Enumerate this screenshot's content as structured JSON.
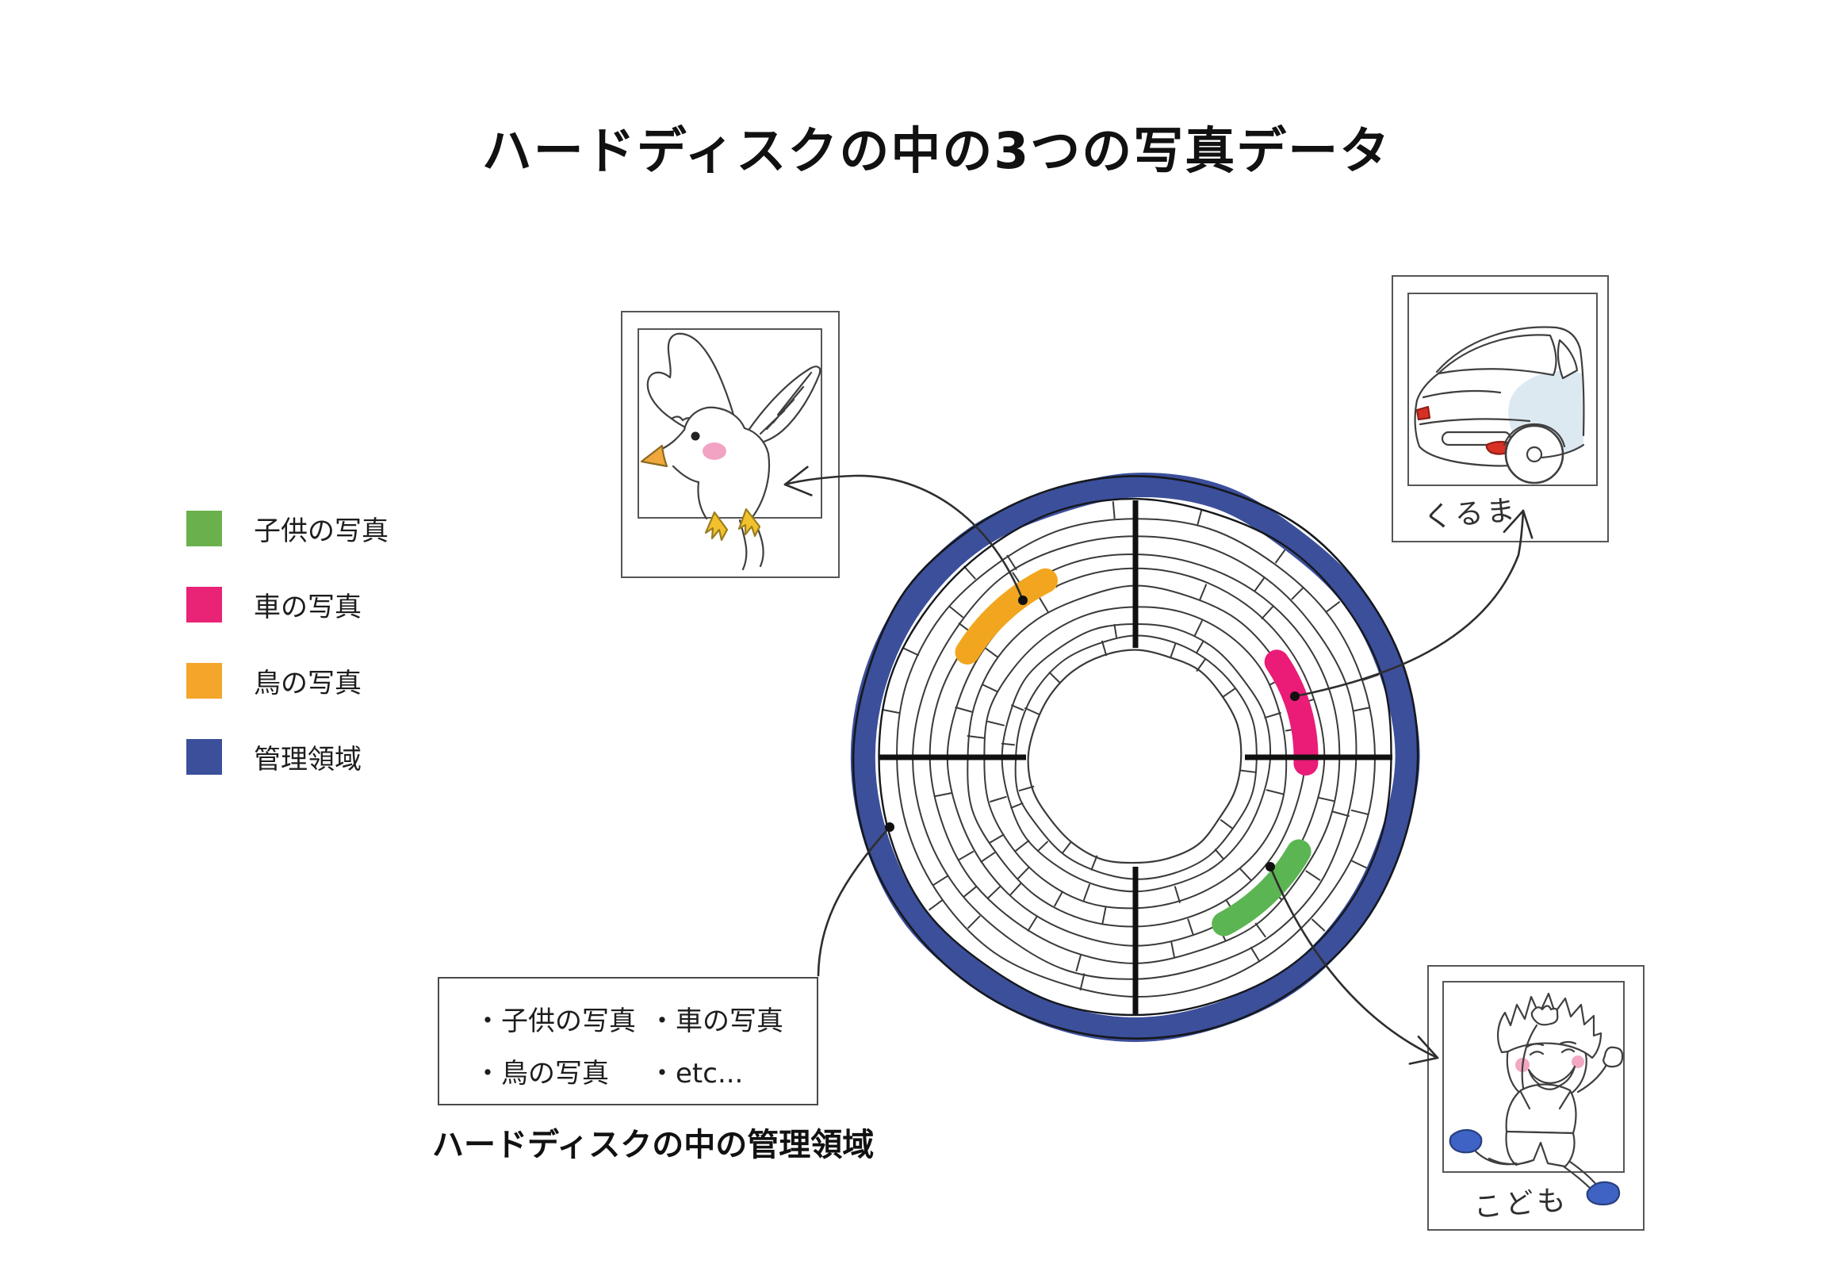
{
  "title": "ハードディスクの中の3つの写真データ",
  "legend": {
    "items": [
      {
        "label": "子供の写真",
        "color": "#6AB04C"
      },
      {
        "label": "車の写真",
        "color": "#E92376"
      },
      {
        "label": "鳥の写真",
        "color": "#F3A62A"
      },
      {
        "label": "管理領域",
        "color": "#3C4F9B"
      }
    ]
  },
  "disk": {
    "ring_color": "#3C4F9B",
    "line_color": "#3a3a3a",
    "segments": [
      {
        "name": "bird-data",
        "color": "#F2A61F",
        "radius": 250,
        "start_angle": 117,
        "end_angle": 148
      },
      {
        "name": "car-data",
        "color": "#EA1C77",
        "radius": 215,
        "start_angle": -2,
        "end_angle": 34
      },
      {
        "name": "child-data",
        "color": "#5CB553",
        "radius": 238,
        "start_angle": -62,
        "end_angle": -30
      }
    ]
  },
  "photos": {
    "car_caption": "くるま",
    "child_caption": "こども"
  },
  "management_box": {
    "items": [
      "・子供の写真",
      "・車の写真",
      "・鳥の写真",
      "・etc..."
    ],
    "caption": "ハードディスクの中の管理領域"
  }
}
